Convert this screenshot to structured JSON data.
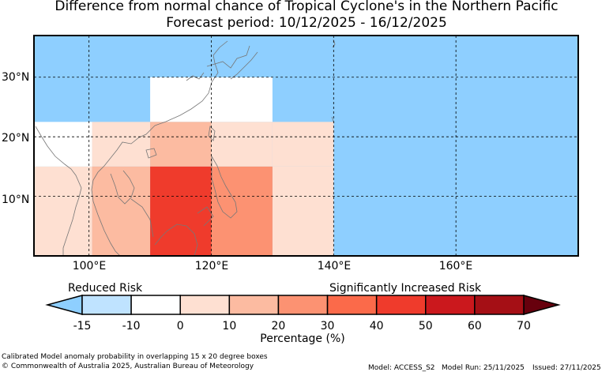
{
  "title": {
    "line1": "Difference from normal chance of Tropical Cyclone's in the Northern Pacific",
    "line2": "Forecast period: 10/12/2025 - 16/12/2025"
  },
  "map": {
    "lon_range": [
      91,
      180
    ],
    "lat_range": [
      0,
      37
    ],
    "lat_labels": [
      "30°N",
      "20°N",
      "10°N"
    ],
    "lon_labels": [
      "100°E",
      "120°E",
      "140°E",
      "160°E"
    ],
    "grid_lats": [
      30,
      20,
      10
    ],
    "grid_lons": [
      100,
      120,
      140,
      160
    ],
    "cells": [
      {
        "lon": [
          91,
          180
        ],
        "lat": [
          0,
          37
        ],
        "value": -15
      },
      {
        "lon": [
          110,
          130
        ],
        "lat": [
          22.5,
          30
        ],
        "value": -10
      },
      {
        "lon": [
          91,
          100.5
        ],
        "lat": [
          15,
          22.5
        ],
        "value": -10
      },
      {
        "lon": [
          130,
          140
        ],
        "lat": [
          15,
          22.5
        ],
        "value": 0
      },
      {
        "lon": [
          91,
          100.5
        ],
        "lat": [
          0,
          15
        ],
        "value": 0
      },
      {
        "lon": [
          130,
          140
        ],
        "lat": [
          0,
          15
        ],
        "value": 0
      },
      {
        "lon": [
          100.5,
          110
        ],
        "lat": [
          15,
          22.5
        ],
        "value": 5
      },
      {
        "lon": [
          120,
          130
        ],
        "lat": [
          15,
          22.5
        ],
        "value": 5
      },
      {
        "lon": [
          110,
          120
        ],
        "lat": [
          15,
          22.5
        ],
        "value": 15
      },
      {
        "lon": [
          100.5,
          110
        ],
        "lat": [
          0,
          15
        ],
        "value": 15
      },
      {
        "lon": [
          120,
          130
        ],
        "lat": [
          0,
          15
        ],
        "value": 25
      },
      {
        "lon": [
          110,
          120
        ],
        "lat": [
          0,
          15
        ],
        "value": 45
      }
    ]
  },
  "legend": {
    "left_label": "Reduced Risk",
    "right_label": "Significantly Increased Risk",
    "unit_label": "Percentage (%)",
    "ticks": [
      "-15",
      "-10",
      "0",
      "10",
      "20",
      "30",
      "40",
      "50",
      "60",
      "70"
    ],
    "under_color": "#8ecfff",
    "over_color": "#67000d",
    "bins": [
      {
        "from": -15,
        "to": -10,
        "color": "#bfe3ff"
      },
      {
        "from": -10,
        "to": 0,
        "color": "#ffffff"
      },
      {
        "from": 0,
        "to": 10,
        "color": "#fee0d2"
      },
      {
        "from": 10,
        "to": 20,
        "color": "#fcbba1"
      },
      {
        "from": 20,
        "to": 30,
        "color": "#fc9272"
      },
      {
        "from": 30,
        "to": 40,
        "color": "#fb6a4a"
      },
      {
        "from": 40,
        "to": 50,
        "color": "#ef3b2c"
      },
      {
        "from": 50,
        "to": 60,
        "color": "#cb181d"
      },
      {
        "from": 60,
        "to": 70,
        "color": "#a50f15"
      }
    ]
  },
  "footer": {
    "note": "Calibrated Model anomaly probability in overlapping 15 x 20 degree boxes",
    "copyright": "© Commonwealth of Australia 2025, Australian Bureau of Meteorology",
    "model": "Model: ACCESS_S2",
    "model_run": "Model Run: 25/11/2025",
    "issued": "Issued: 27/11/2025"
  }
}
